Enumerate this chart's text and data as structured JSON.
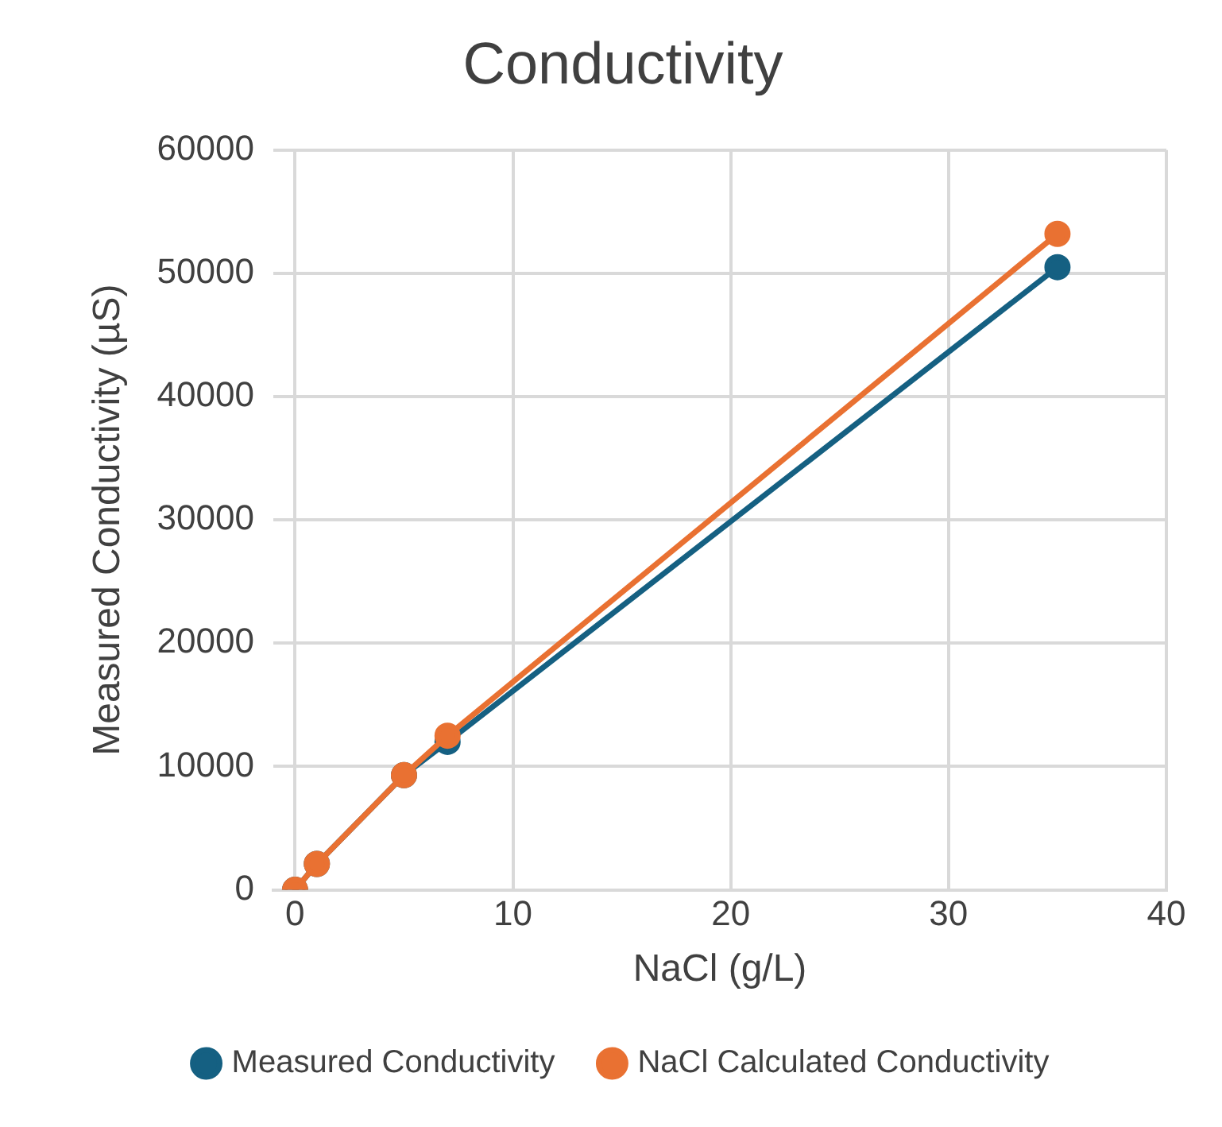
{
  "chart_data": {
    "type": "line",
    "title": "Conductivity",
    "xlabel": "NaCl (g/L)",
    "ylabel": "Measured Conductivity (µS)",
    "xlim": [
      -1,
      40
    ],
    "xticks": [
      0,
      10,
      20,
      30,
      40
    ],
    "ylim": [
      0,
      60000
    ],
    "yticks": [
      0,
      10000,
      20000,
      30000,
      40000,
      50000,
      60000
    ],
    "grid": true,
    "legend": "bottom",
    "marker": "circle",
    "line_style": "solid",
    "series": [
      {
        "name": "Measured Conductivity",
        "color": "#156082",
        "x": [
          0,
          1,
          5,
          7,
          35
        ],
        "values": [
          0,
          2100,
          9300,
          12000,
          50500
        ]
      },
      {
        "name": "NaCl Calculated Conductivity",
        "color": "#e97132",
        "x": [
          0,
          1,
          5,
          7,
          35
        ],
        "values": [
          0,
          2100,
          9300,
          12500,
          53200
        ]
      }
    ]
  }
}
